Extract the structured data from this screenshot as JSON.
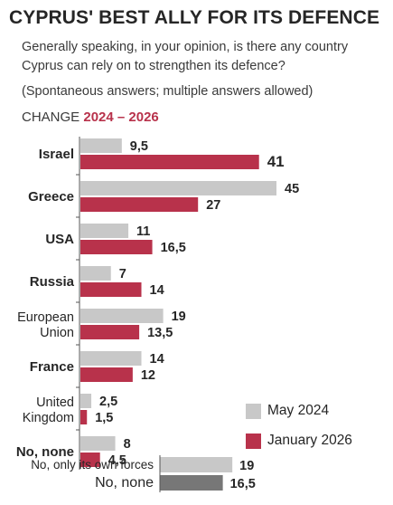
{
  "header": {
    "title": "CYPRUS' BEST ALLY FOR ITS DEFENCE",
    "question": "Generally speaking, in your opinion, is there any country Cyprus can rely on to strengthen its defence?",
    "note": "(Spontaneous answers; multiple answers allowed)",
    "change_prefix": "CHANGE",
    "change_years": "2024 – 2026"
  },
  "legend": {
    "series_a": "May 2024",
    "series_b": "January 2026"
  },
  "colors": {
    "series_a": "#c8c8c8",
    "series_b": "#b8324b",
    "extra_dark": "#777777",
    "axis": "#555555"
  },
  "chart_data": {
    "type": "bar",
    "orientation": "horizontal",
    "categories": [
      [
        "Israel"
      ],
      [
        "Greece"
      ],
      [
        "USA"
      ],
      [
        "Russia"
      ],
      [
        "European",
        "Union"
      ],
      [
        "France"
      ],
      [
        "United",
        "Kingdom"
      ],
      [
        "No, none"
      ]
    ],
    "series": [
      {
        "name": "May 2024",
        "values": [
          9.5,
          45,
          11,
          7,
          19,
          14,
          2.5,
          8
        ],
        "labels": [
          "9,5",
          "45",
          "11",
          "7",
          "19",
          "14",
          "2,5",
          "8"
        ]
      },
      {
        "name": "January 2026",
        "values": [
          41,
          27,
          16.5,
          14,
          13.5,
          12,
          1.5,
          4.5
        ],
        "labels": [
          "41",
          "27",
          "16,5",
          "14",
          "13,5",
          "12",
          "1,5",
          "4,5"
        ]
      }
    ],
    "extra_rows": [
      {
        "label": "No, only its own forces",
        "value": 19,
        "value_label": "19",
        "style": "light"
      },
      {
        "label": "No, none",
        "value": 16.5,
        "value_label": "16,5",
        "style": "dark"
      }
    ]
  }
}
